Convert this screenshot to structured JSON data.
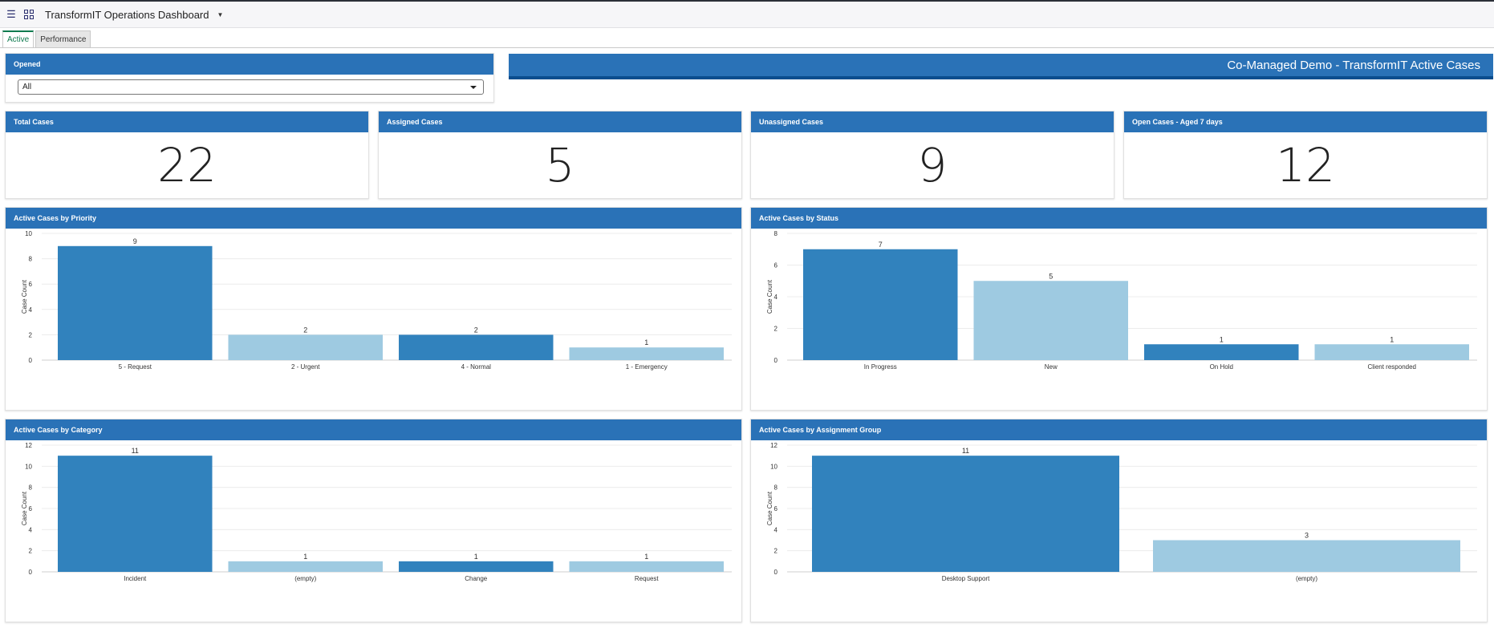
{
  "header": {
    "title": "TransformIT Operations Dashboard",
    "menu_icon": "hamburger-icon",
    "dashboard_icon": "grid-icon"
  },
  "tabs": [
    {
      "label": "Active",
      "active": true
    },
    {
      "label": "Performance",
      "active": false
    }
  ],
  "filter": {
    "title": "Opened",
    "value": "All"
  },
  "banner": {
    "text": "Co-Managed Demo - TransformIT Active Cases"
  },
  "kpis": [
    {
      "title": "Total Cases",
      "value": "22"
    },
    {
      "title": "Assigned Cases",
      "value": "5"
    },
    {
      "title": "Unassigned Cases",
      "value": "9"
    },
    {
      "title": "Open Cases - Aged 7 days",
      "value": "12"
    }
  ],
  "colors": {
    "header_blue": "#2a72b7",
    "bar_dark": "#3182bd",
    "bar_light": "#9ecae1"
  },
  "chart_data": [
    {
      "type": "bar",
      "title": "Active Cases by Priority",
      "ylabel": "Case Count",
      "ylim": [
        0,
        10
      ],
      "yticks": [
        0,
        2,
        4,
        6,
        8,
        10
      ],
      "categories": [
        "5 - Request",
        "2 - Urgent",
        "4 - Normal",
        "1 - Emergency"
      ],
      "values": [
        9,
        2,
        2,
        1
      ],
      "grid": true
    },
    {
      "type": "bar",
      "title": "Active Cases by Status",
      "ylabel": "Case Count",
      "ylim": [
        0,
        8
      ],
      "yticks": [
        0,
        2,
        4,
        6,
        8
      ],
      "categories": [
        "In Progress",
        "New",
        "On Hold",
        "Client responded"
      ],
      "values": [
        7,
        5,
        1,
        1
      ],
      "grid": true
    },
    {
      "type": "bar",
      "title": "Active Cases by Category",
      "ylabel": "Case Count",
      "ylim": [
        0,
        12
      ],
      "yticks": [
        0,
        2,
        4,
        6,
        8,
        10,
        12
      ],
      "categories": [
        "Incident",
        "(empty)",
        "Change",
        "Request"
      ],
      "values": [
        11,
        1,
        1,
        1
      ],
      "grid": true
    },
    {
      "type": "bar",
      "title": "Active Cases by Assignment Group",
      "ylabel": "Case Count",
      "ylim": [
        0,
        12
      ],
      "yticks": [
        0,
        2,
        4,
        6,
        8,
        10,
        12
      ],
      "categories": [
        "Desktop Support",
        "(empty)"
      ],
      "values": [
        11,
        3
      ],
      "grid": true
    }
  ]
}
